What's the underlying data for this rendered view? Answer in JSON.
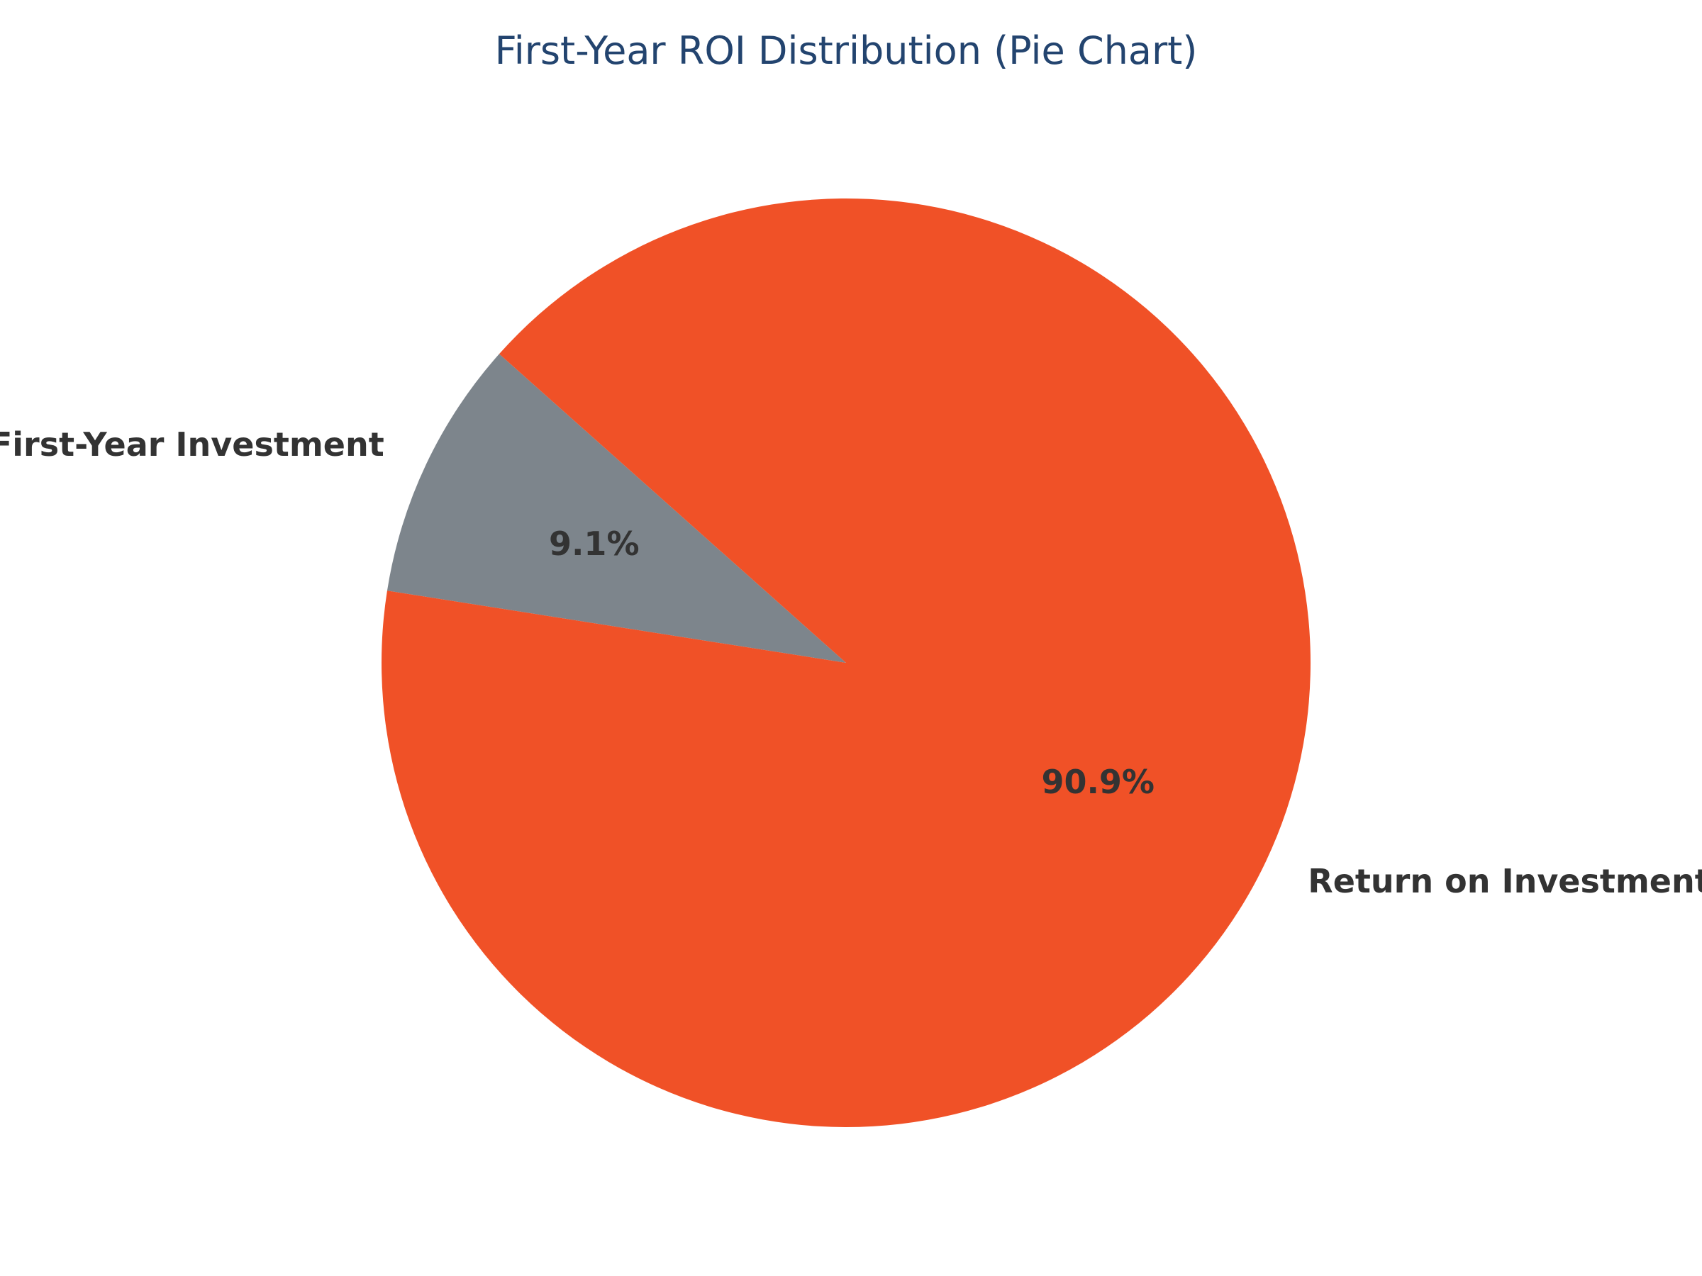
{
  "chart_data": {
    "type": "pie",
    "title": "First-Year ROI Distribution (Pie Chart)",
    "categories": [
      "First-Year Investment",
      "Return on Investment"
    ],
    "values": [
      9.1,
      90.9
    ],
    "value_labels": [
      "9.1%",
      "90.9%"
    ],
    "colors": [
      "#7d858c",
      "#f05127"
    ],
    "legend": "none"
  }
}
